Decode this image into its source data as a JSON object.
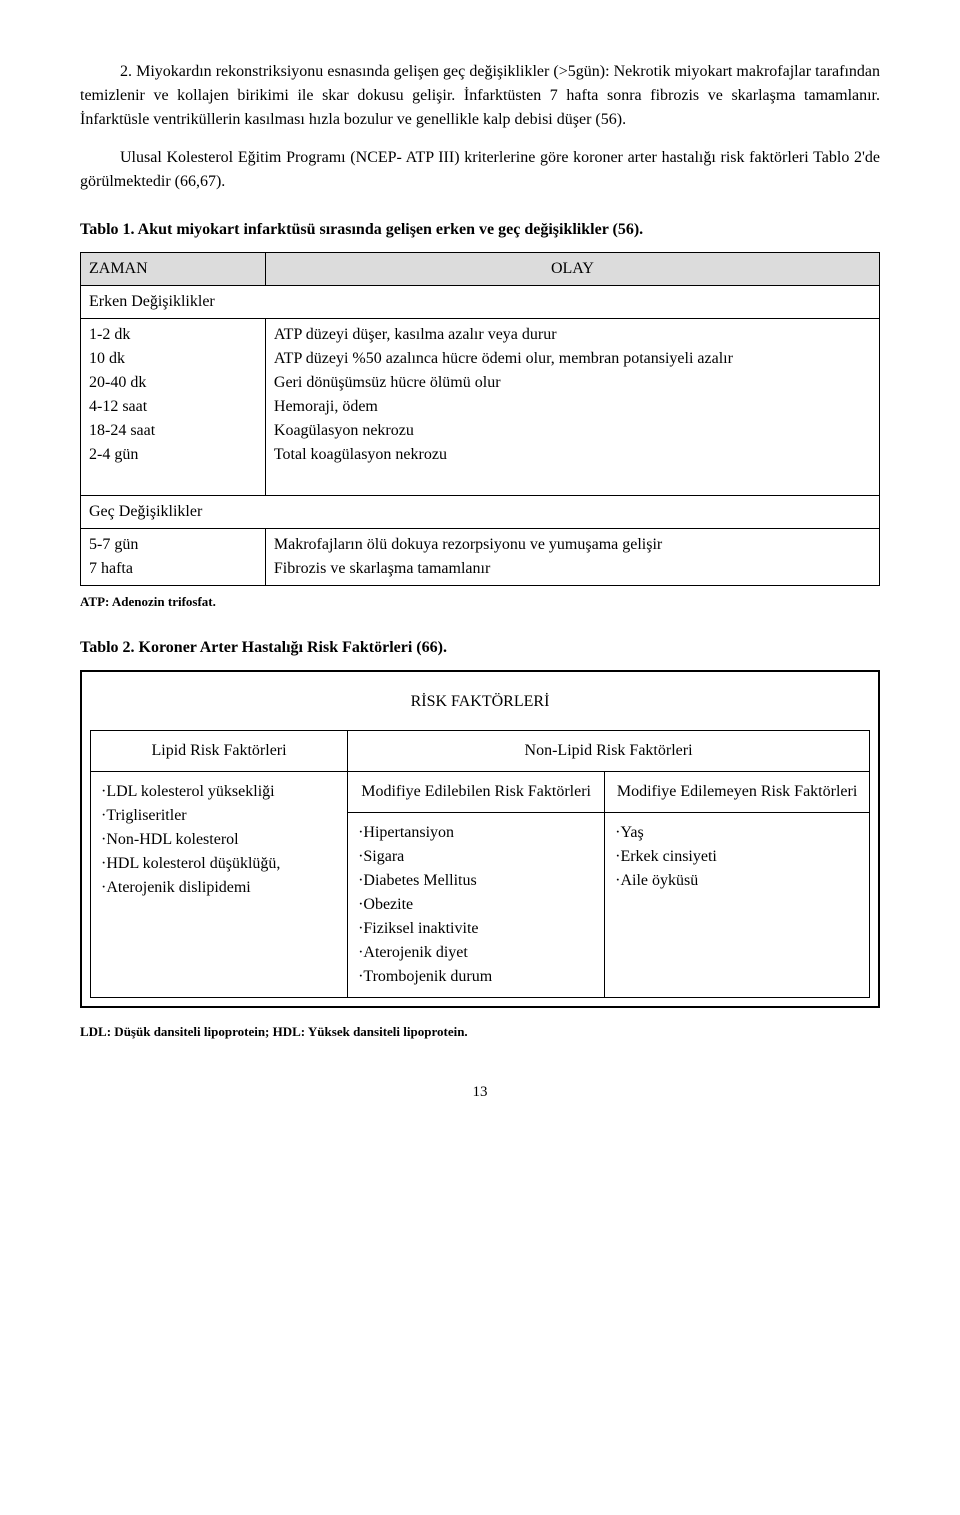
{
  "paragraphs": {
    "p1": "2. Miyokardın rekonstriksiyonu esnasında gelişen geç değişiklikler (>5gün): Nekrotik miyokart makrofajlar tarafından temizlenir ve kollajen birikimi ile skar dokusu gelişir. İnfarktüsten 7 hafta sonra fibrozis ve skarlaşma tamamlanır. İnfarktüsle ventriküllerin kasılması hızla bozulur ve genellikle kalp debisi düşer (56).",
    "p2": "Ulusal Kolesterol Eğitim Programı (NCEP- ATP III) kriterlerine göre koroner arter hastalığı risk faktörleri Tablo 2'de görülmektedir (66,67)."
  },
  "table1": {
    "title": "Tablo 1. Akut miyokart infarktüsü sırasında gelişen erken ve geç değişiklikler (56).",
    "header_left": "ZAMAN",
    "header_right": "OLAY",
    "early_label": "Erken Değişiklikler",
    "early_rows": [
      {
        "time": "1-2 dk",
        "event": "ATP düzeyi düşer, kasılma azalır veya durur"
      },
      {
        "time": "10 dk",
        "event": "ATP düzeyi %50 azalınca hücre ödemi olur, membran potansiyeli azalır"
      },
      {
        "time": "20-40 dk",
        "event": "Geri dönüşümsüz hücre ölümü olur"
      },
      {
        "time": "4-12 saat",
        "event": "Hemoraji, ödem"
      },
      {
        "time": "18-24 saat",
        "event": "Koagülasyon nekrozu"
      },
      {
        "time": "2-4 gün",
        "event": "Total koagülasyon nekrozu"
      }
    ],
    "late_label": "Geç Değişiklikler",
    "late_rows": [
      {
        "time": "5-7 gün",
        "event": "Makrofajların ölü dokuya rezorpsiyonu ve yumuşama gelişir"
      },
      {
        "time": "7 hafta",
        "event": "Fibrozis ve skarlaşma tamamlanır"
      }
    ],
    "footnote": "ATP: Adenozin trifosfat."
  },
  "table2": {
    "title": "Tablo 2. Koroner Arter Hastalığı Risk Faktörleri  (66).",
    "heading": "RİSK FAKTÖRLERİ",
    "lipid_head": "Lipid Risk Faktörleri",
    "nonlipid_head": "Non-Lipid Risk Faktörleri",
    "modifiable_head": "Modifiye Edilebilen Risk Faktörleri",
    "nonmodifiable_head": "Modifiye Edilemeyen Risk Faktörleri",
    "lipid_items": [
      "LDL kolesterol yüksekliği",
      "Trigliseritler",
      "Non-HDL kolesterol",
      "HDL kolesterol düşüklüğü,",
      "Aterojenik dislipidemi"
    ],
    "modifiable_items": [
      "Hipertansiyon",
      "Sigara",
      "Diabetes Mellitus",
      "Obezite",
      "Fiziksel inaktivite",
      "Aterojenik diyet",
      "Trombojenik durum"
    ],
    "nonmodifiable_items": [
      "Yaş",
      "Erkek cinsiyeti",
      "Aile öyküsü"
    ],
    "footnote": "LDL: Düşük dansiteli lipoprotein; HDL: Yüksek dansiteli lipoprotein."
  },
  "page_number": "13"
}
